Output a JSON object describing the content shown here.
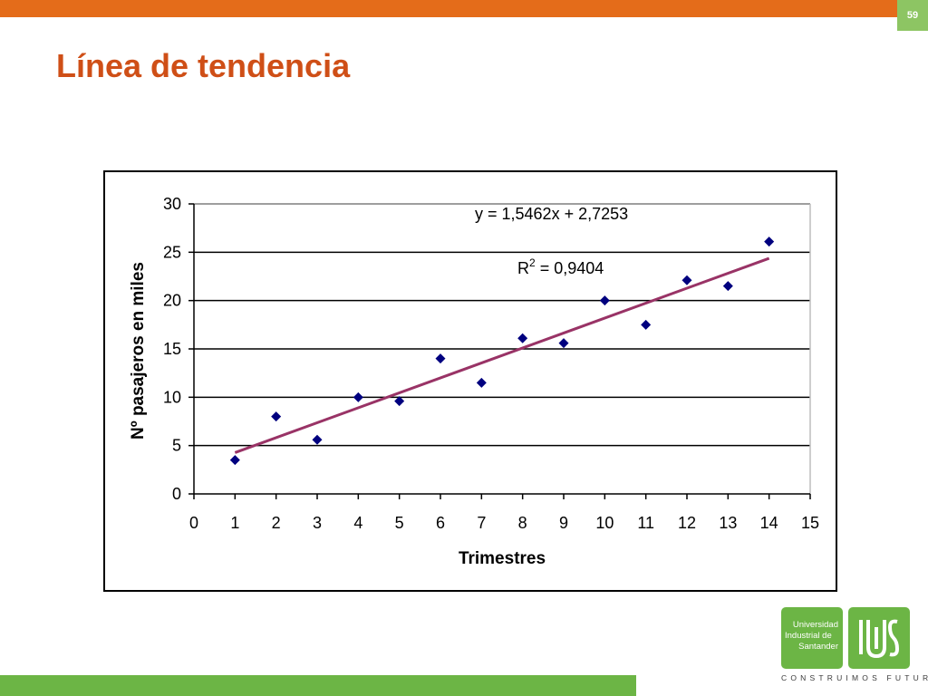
{
  "slide": {
    "page_number": "59",
    "title": "Línea de tendencia",
    "accent_colors": {
      "top_bar": "#e46c1a",
      "title": "#cf4f17",
      "green": "#6cb545"
    }
  },
  "chart_data": {
    "type": "scatter",
    "x": [
      1,
      2,
      3,
      4,
      5,
      6,
      7,
      8,
      9,
      10,
      11,
      12,
      13,
      14
    ],
    "y": [
      3.5,
      8,
      5.6,
      10,
      9.6,
      14,
      11.5,
      16.1,
      15.6,
      20,
      17.5,
      22.1,
      21.5,
      26.1
    ],
    "xlabel": "Trimestres",
    "ylabel": "Nº pasajeros en miles",
    "xlim": [
      0,
      15
    ],
    "ylim": [
      0,
      30
    ],
    "xticks": [
      "0",
      "1",
      "2",
      "3",
      "4",
      "5",
      "6",
      "7",
      "8",
      "9",
      "10",
      "11",
      "12",
      "13",
      "14",
      "15"
    ],
    "yticks": [
      "0",
      "5",
      "10",
      "15",
      "20",
      "25",
      "30"
    ],
    "grid": "horizontal",
    "marker": "diamond",
    "marker_color": "#00007f",
    "trendline": {
      "type": "linear",
      "slope": 1.5462,
      "intercept": 2.7253,
      "x_range": [
        1,
        14
      ],
      "color": "#993366",
      "equation_label": "y = 1,5462x + 2,7253",
      "r2_prefix": "R",
      "r2_superscript": "2",
      "r2_value": " = 0,9404"
    }
  },
  "logo": {
    "line1": "Universidad",
    "line2": "Industrial de",
    "line3": "Santander",
    "mark": "UIS",
    "tagline": "CONSTRUIMOS FUTURO"
  }
}
